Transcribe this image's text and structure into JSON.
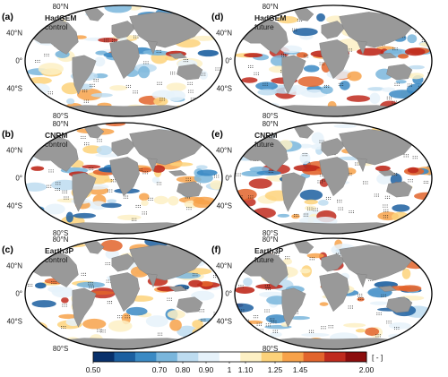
{
  "figure": {
    "panels": [
      {
        "id": "a",
        "letter": "(a)",
        "model": "HadGEM",
        "period": "control",
        "column": 0,
        "row": 0,
        "style": {
          "warm": 0.45,
          "cool": 0.45,
          "seed": 11
        }
      },
      {
        "id": "b",
        "letter": "(b)",
        "model": "CNRM",
        "period": "control",
        "column": 0,
        "row": 1,
        "style": {
          "warm": 0.35,
          "cool": 0.45,
          "seed": 23
        }
      },
      {
        "id": "c",
        "letter": "(c)",
        "model": "Earth3P",
        "period": "control",
        "column": 0,
        "row": 2,
        "style": {
          "warm": 0.4,
          "cool": 0.55,
          "seed": 37
        }
      },
      {
        "id": "d",
        "letter": "(d)",
        "model": "HadGEM",
        "period": "future",
        "column": 1,
        "row": 0,
        "style": {
          "warm": 0.75,
          "cool": 0.5,
          "seed": 41
        }
      },
      {
        "id": "e",
        "letter": "(e)",
        "model": "CNRM",
        "period": "future",
        "column": 1,
        "row": 1,
        "style": {
          "warm": 0.55,
          "cool": 0.45,
          "seed": 53
        }
      },
      {
        "id": "f",
        "letter": "(f)",
        "model": "Earth3P",
        "period": "future",
        "column": 1,
        "row": 2,
        "style": {
          "warm": 0.6,
          "cool": 0.55,
          "seed": 67
        }
      }
    ],
    "latitude_labels": {
      "n80": "80°N",
      "n40": "40°N",
      "eq": "0°",
      "s40": "40°S",
      "s80": "80°S"
    },
    "colorbar": {
      "ticks": [
        "0.50",
        "0.70",
        "0.80",
        "0.90",
        "1",
        "1.10",
        "1.25",
        "1.45",
        "2.00"
      ],
      "unit": "[ - ]",
      "colors": [
        "#08306b",
        "#1c5fa0",
        "#3b8ac4",
        "#7ab6dc",
        "#bddcf0",
        "#e6f2fa",
        "#ffffff",
        "#fdf0c4",
        "#fdd27a",
        "#f7a24a",
        "#e2642c",
        "#bf2a1d",
        "#8c0d0d"
      ]
    },
    "colors": {
      "land": "#999999",
      "ocean": "#ffffff",
      "outline": "#000000"
    }
  }
}
